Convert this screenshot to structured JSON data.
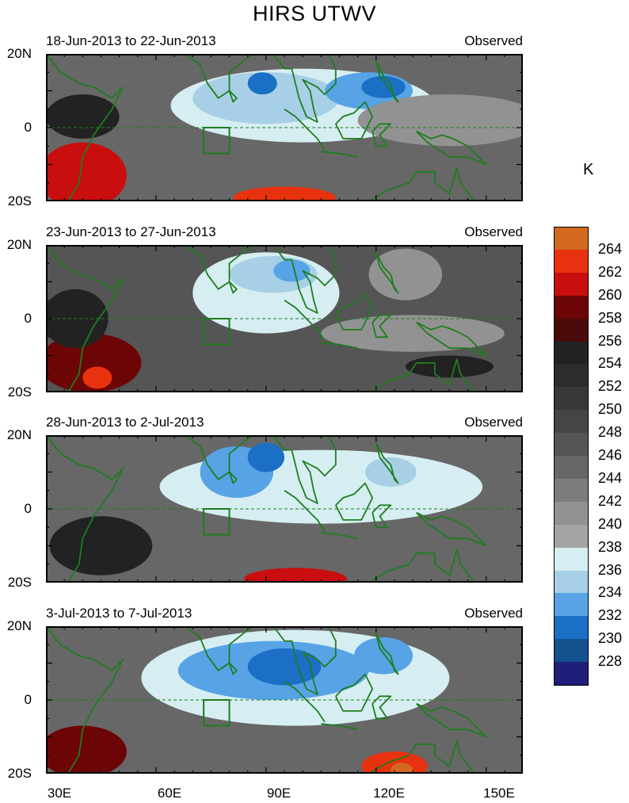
{
  "title": "HIRS UTWV",
  "chart_data": {
    "type": "heatmap",
    "title": "HIRS UTWV",
    "variable_unit": "K",
    "x_ticks": [
      "30E",
      "60E",
      "90E",
      "120E",
      "150E"
    ],
    "x_tick_values": [
      30,
      60,
      90,
      120,
      150
    ],
    "y_ticks": [
      "20N",
      "0",
      "20S"
    ],
    "y_tick_values": [
      20,
      0,
      -20
    ],
    "xlim": [
      30,
      160
    ],
    "ylim": [
      -20,
      20
    ],
    "colorbar": {
      "unit": "K",
      "levels": [
        228,
        230,
        232,
        234,
        236,
        238,
        240,
        242,
        244,
        246,
        248,
        250,
        252,
        254,
        256,
        258,
        260,
        262,
        264
      ],
      "level_labels": [
        "228",
        "230",
        "232",
        "234",
        "236",
        "238",
        "240",
        "242",
        "244",
        "246",
        "248",
        "250",
        "252",
        "254",
        "256",
        "258",
        "260",
        "262",
        "264"
      ],
      "colors": [
        "#1f1f7a",
        "#14518f",
        "#1b6fc4",
        "#57a3e6",
        "#a7d0e6",
        "#d6eef2",
        "#a4a4a4",
        "#929292",
        "#7c7c7c",
        "#676767",
        "#555555",
        "#454545",
        "#383838",
        "#2c2c2c",
        "#222222",
        "#4a0a0a",
        "#6c0505",
        "#c80e0e",
        "#e8320f",
        "#d2691e"
      ]
    },
    "panels": [
      {
        "period": "18-Jun-2013 to 22-Jun-2013",
        "label": "Observed",
        "background_value": 244,
        "regions": [
          {
            "lon": 100,
            "lat": 6,
            "rx": 36,
            "ry": 10,
            "value": 237
          },
          {
            "lon": 90,
            "lat": 8,
            "rx": 20,
            "ry": 7,
            "value": 234
          },
          {
            "lon": 118,
            "lat": 10,
            "rx": 12,
            "ry": 5,
            "value": 232
          },
          {
            "lon": 89,
            "lat": 12,
            "rx": 4,
            "ry": 3,
            "value": 230
          },
          {
            "lon": 122,
            "lat": 11,
            "rx": 6,
            "ry": 3,
            "value": 230
          },
          {
            "lon": 140,
            "lat": 2,
            "rx": 25,
            "ry": 7,
            "value": 241
          },
          {
            "lon": 40,
            "lat": -13,
            "rx": 12,
            "ry": 9,
            "value": 260
          },
          {
            "lon": 95,
            "lat": -19,
            "rx": 14,
            "ry": 3,
            "value": 262
          },
          {
            "lon": 40,
            "lat": 3,
            "rx": 10,
            "ry": 6,
            "value": 254
          }
        ]
      },
      {
        "period": "23-Jun-2013 to 27-Jun-2013",
        "label": "Observed",
        "background_value": 246,
        "regions": [
          {
            "lon": 90,
            "lat": 7,
            "rx": 20,
            "ry": 11,
            "value": 237
          },
          {
            "lon": 92,
            "lat": 12,
            "rx": 12,
            "ry": 5,
            "value": 234
          },
          {
            "lon": 97,
            "lat": 13,
            "rx": 5,
            "ry": 3,
            "value": 232
          },
          {
            "lon": 128,
            "lat": 12,
            "rx": 10,
            "ry": 7,
            "value": 240
          },
          {
            "lon": 130,
            "lat": -4,
            "rx": 25,
            "ry": 5,
            "value": 241
          },
          {
            "lon": 42,
            "lat": -12,
            "rx": 14,
            "ry": 8,
            "value": 259
          },
          {
            "lon": 44,
            "lat": -16,
            "rx": 4,
            "ry": 3,
            "value": 263
          },
          {
            "lon": 38,
            "lat": 0,
            "rx": 9,
            "ry": 8,
            "value": 254
          },
          {
            "lon": 140,
            "lat": -13,
            "rx": 12,
            "ry": 3,
            "value": 254
          }
        ]
      },
      {
        "period": "28-Jun-2013 to 2-Jul-2013",
        "label": "Observed",
        "background_value": 244,
        "regions": [
          {
            "lon": 105,
            "lat": 6,
            "rx": 44,
            "ry": 10,
            "value": 237
          },
          {
            "lon": 82,
            "lat": 10,
            "rx": 10,
            "ry": 7,
            "value": 233
          },
          {
            "lon": 90,
            "lat": 14,
            "rx": 5,
            "ry": 4,
            "value": 231
          },
          {
            "lon": 124,
            "lat": 10,
            "rx": 7,
            "ry": 4,
            "value": 234
          },
          {
            "lon": 45,
            "lat": -10,
            "rx": 14,
            "ry": 8,
            "value": 255
          },
          {
            "lon": 98,
            "lat": -19,
            "rx": 14,
            "ry": 3,
            "value": 261
          }
        ]
      },
      {
        "period": "3-Jul-2013 to 7-Jul-2013",
        "label": "Observed",
        "background_value": 244,
        "regions": [
          {
            "lon": 98,
            "lat": 6,
            "rx": 42,
            "ry": 13,
            "value": 237
          },
          {
            "lon": 92,
            "lat": 8,
            "rx": 26,
            "ry": 8,
            "value": 233
          },
          {
            "lon": 95,
            "lat": 9,
            "rx": 10,
            "ry": 5,
            "value": 230
          },
          {
            "lon": 122,
            "lat": 12,
            "rx": 8,
            "ry": 5,
            "value": 233
          },
          {
            "lon": 40,
            "lat": -14,
            "rx": 12,
            "ry": 7,
            "value": 259
          },
          {
            "lon": 125,
            "lat": -18,
            "rx": 9,
            "ry": 4,
            "value": 262
          },
          {
            "lon": 127,
            "lat": -19,
            "rx": 3,
            "ry": 2,
            "value": 264
          }
        ]
      }
    ]
  }
}
